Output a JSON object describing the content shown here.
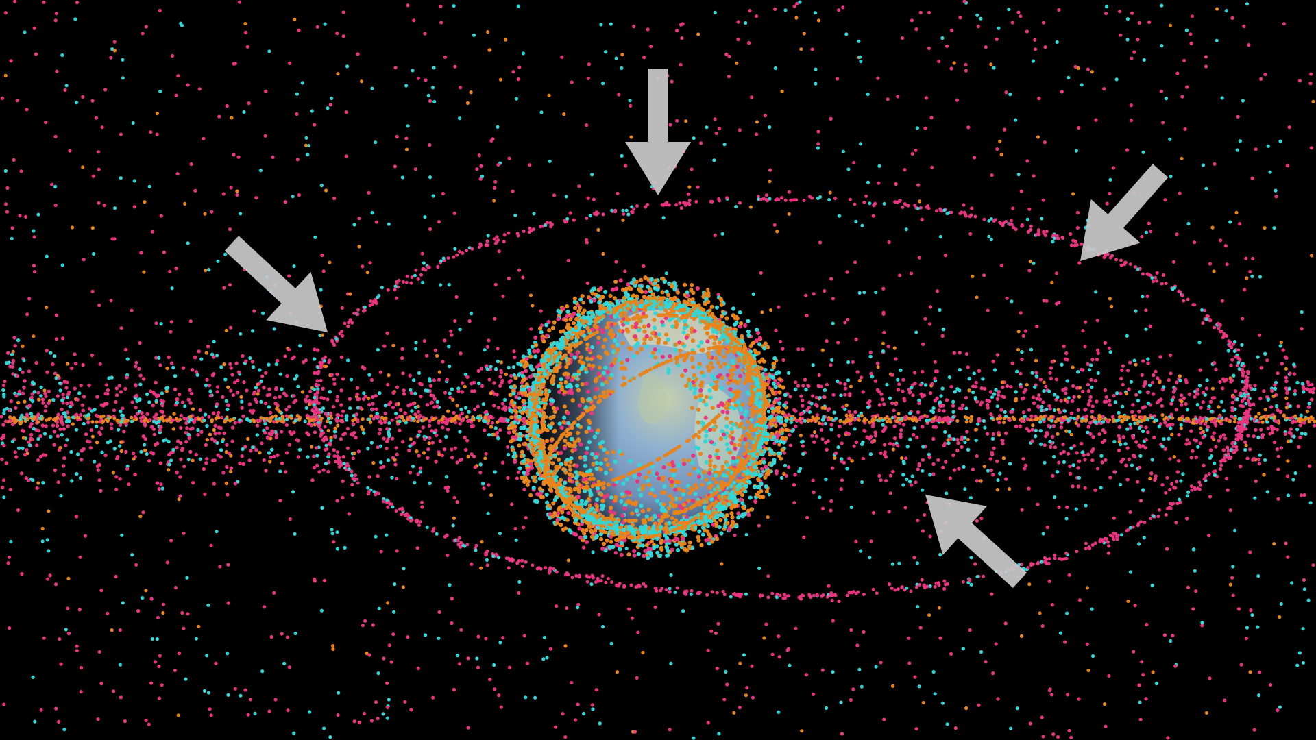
{
  "scene": {
    "background_color": "#000000",
    "subject": "earth-with-orbital-objects",
    "colors": {
      "pink_objects": "#e8357f",
      "cyan_objects": "#33d6d6",
      "orange_objects": "#e8841c",
      "arrows": "#c8c8c8",
      "earth_ocean": "#7a9cc4",
      "earth_land": "#dcd7b0"
    },
    "arrows": [
      {
        "name": "arrow-top-icon",
        "pointing": "down"
      },
      {
        "name": "arrow-upper-left-icon",
        "pointing": "down-right"
      },
      {
        "name": "arrow-upper-right-icon",
        "pointing": "down-left"
      },
      {
        "name": "arrow-lower-right-icon",
        "pointing": "up-left"
      }
    ]
  }
}
